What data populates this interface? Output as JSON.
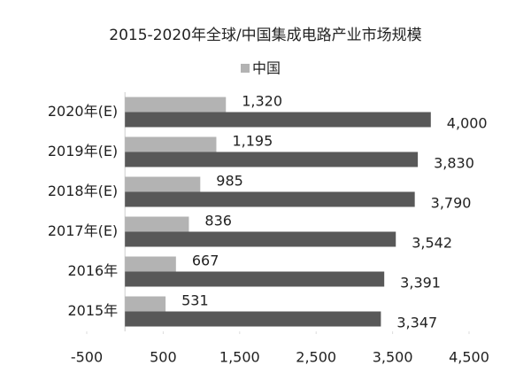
{
  "chart_data": {
    "type": "barh",
    "title": "2015-2020年全球/中国集成电路产业市场规模",
    "categories": [
      "2020年(E)",
      "2019年(E)",
      "2018年(E)",
      "2017年(E)",
      "2016年",
      "2015年"
    ],
    "series": [
      {
        "name": "中国",
        "color": "#b3b3b3",
        "values": [
          1320,
          1195,
          985,
          836,
          667,
          531
        ],
        "value_labels": [
          "1,320",
          "1,195",
          "985",
          "836",
          "667",
          "531"
        ]
      },
      {
        "color": "#585858",
        "values": [
          4000,
          3830,
          3790,
          3542,
          3391,
          3347
        ],
        "value_labels": [
          "4,000",
          "3,830",
          "3,790",
          "3,542",
          "3,391",
          "3,347"
        ]
      }
    ],
    "xlim": [
      -500,
      4500
    ],
    "xticks": [
      -500,
      500,
      {
        "value": 1500,
        "label": "1,500"
      },
      {
        "value": 2500,
        "label": "2,500"
      },
      {
        "value": 3500,
        "label": "3,500"
      },
      {
        "value": 4500,
        "label": "4,500"
      }
    ],
    "grid": false
  }
}
